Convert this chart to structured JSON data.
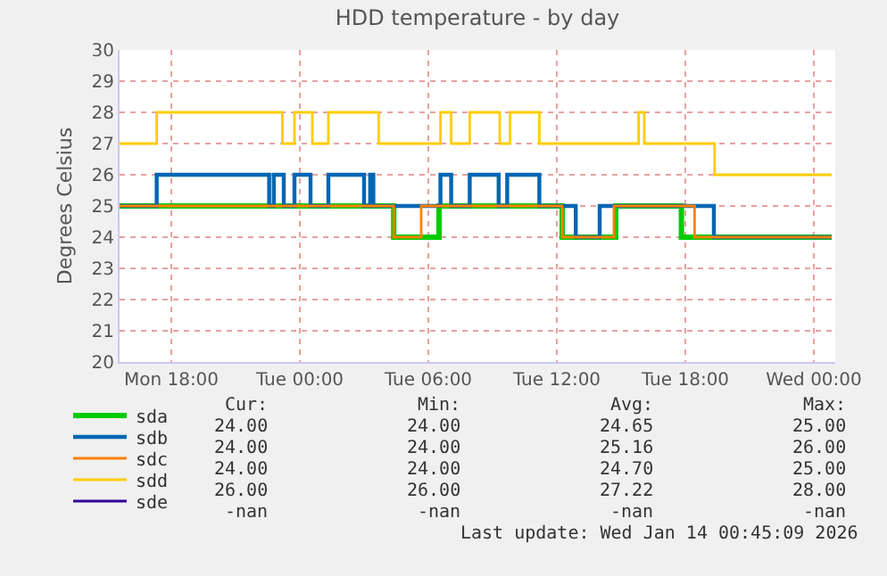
{
  "chart_data": {
    "type": "step",
    "title": "HDD temperature - by day",
    "ylabel": "Degrees Celsius",
    "xlim": [
      "2026-01-12T15:35",
      "2026-01-14T01:00"
    ],
    "xticks": [
      {
        "value": "2026-01-12T18:00",
        "label": "Mon 18:00"
      },
      {
        "value": "2026-01-13T00:00",
        "label": "Tue 00:00"
      },
      {
        "value": "2026-01-13T06:00",
        "label": "Tue 06:00"
      },
      {
        "value": "2026-01-13T12:00",
        "label": "Tue 12:00"
      },
      {
        "value": "2026-01-13T18:00",
        "label": "Tue 18:00"
      },
      {
        "value": "2026-01-14T00:00",
        "label": "Wed 00:00"
      }
    ],
    "ylim": [
      20,
      30
    ],
    "yticks": [
      20,
      21,
      22,
      23,
      24,
      25,
      26,
      27,
      28,
      29,
      30
    ],
    "grid": true,
    "legend": "bottom",
    "series": [
      {
        "name": "sda",
        "color": "#00cc00",
        "x": [
          "2026-01-12T15:35",
          "2026-01-13T04:23",
          "2026-01-13T06:30",
          "2026-01-13T12:15",
          "2026-01-13T14:45",
          "2026-01-13T17:49",
          "2026-01-14T00:50"
        ],
        "values": [
          25,
          24,
          25,
          24,
          25,
          24,
          24
        ]
      },
      {
        "name": "sdb",
        "color": "#0066b3",
        "x": [
          "2026-01-12T15:35",
          "2026-01-12T17:19",
          "2026-01-12T22:34",
          "2026-01-12T22:47",
          "2026-01-12T23:15",
          "2026-01-12T23:45",
          "2026-01-13T00:30",
          "2026-01-13T01:20",
          "2026-01-13T03:00",
          "2026-01-13T03:17",
          "2026-01-13T03:26",
          "2026-01-13T06:34",
          "2026-01-13T07:04",
          "2026-01-13T07:56",
          "2026-01-13T09:17",
          "2026-01-13T09:41",
          "2026-01-13T11:11",
          "2026-01-13T12:53",
          "2026-01-13T14:00",
          "2026-01-13T19:20",
          "2026-01-14T00:50"
        ],
        "values": [
          25,
          26,
          25,
          26,
          25,
          26,
          25,
          26,
          25,
          26,
          25,
          26,
          25,
          26,
          25,
          26,
          25,
          24,
          25,
          24,
          24
        ]
      },
      {
        "name": "sdc",
        "color": "#ff8000",
        "x": [
          "2026-01-12T15:35",
          "2026-01-13T04:23",
          "2026-01-13T05:40",
          "2026-01-13T12:15",
          "2026-01-13T14:40",
          "2026-01-13T18:26",
          "2026-01-14T00:50"
        ],
        "values": [
          25,
          24,
          25,
          24,
          25,
          24,
          24
        ]
      },
      {
        "name": "sdd",
        "color": "#ffcc00",
        "x": [
          "2026-01-12T15:35",
          "2026-01-12T17:19",
          "2026-01-12T23:11",
          "2026-01-12T23:45",
          "2026-01-13T00:35",
          "2026-01-13T01:20",
          "2026-01-13T03:41",
          "2026-01-13T06:34",
          "2026-01-13T07:04",
          "2026-01-13T07:56",
          "2026-01-13T09:20",
          "2026-01-13T09:49",
          "2026-01-13T11:11",
          "2026-01-13T15:49",
          "2026-01-13T16:05",
          "2026-01-13T19:22",
          "2026-01-14T00:50"
        ],
        "values": [
          27,
          28,
          27,
          28,
          27,
          28,
          27,
          28,
          27,
          28,
          27,
          28,
          27,
          28,
          27,
          26,
          26
        ]
      },
      {
        "name": "sde",
        "color": "#330099"
      }
    ],
    "annotations": [
      "Cur:",
      "Min:",
      "Avg:",
      "Max:",
      "24.00",
      "24.00",
      "24.65",
      "25.00",
      "24.00",
      "24.00",
      "25.16",
      "26.00",
      "24.00",
      "24.00",
      "24.70",
      "25.00",
      "26.00",
      "26.00",
      "27.22",
      "28.00",
      "-nan",
      "-nan",
      "-nan",
      "-nan",
      "Last update: Wed Jan 14 00:45:09 2026"
    ]
  }
}
